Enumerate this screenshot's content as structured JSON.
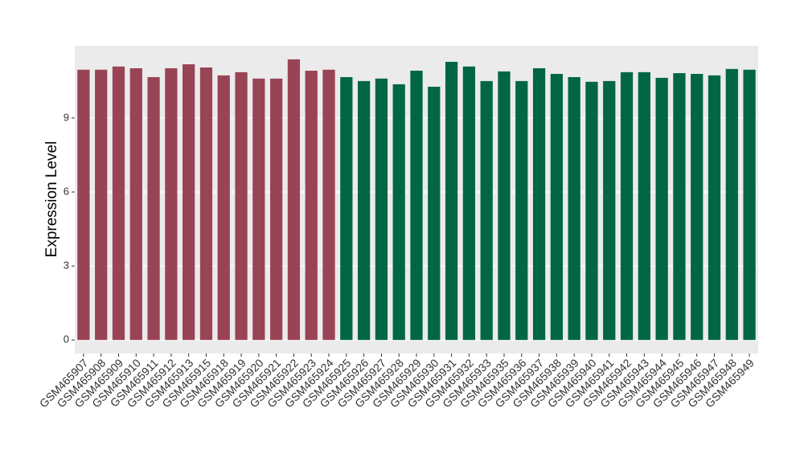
{
  "chart_data": {
    "type": "bar",
    "y_label": "Expression Level",
    "categories": [
      "GSM465907",
      "GSM465908",
      "GSM465909",
      "GSM465910",
      "GSM465911",
      "GSM465912",
      "GSM465913",
      "GSM465915",
      "GSM465918",
      "GSM465919",
      "GSM465920",
      "GSM465921",
      "GSM465922",
      "GSM465923",
      "GSM465924",
      "GSM465925",
      "GSM465926",
      "GSM465927",
      "GSM465928",
      "GSM465929",
      "GSM465930",
      "GSM465931",
      "GSM465932",
      "GSM465933",
      "GSM465935",
      "GSM465936",
      "GSM465937",
      "GSM465938",
      "GSM465939",
      "GSM465940",
      "GSM465941",
      "GSM465942",
      "GSM465943",
      "GSM465944",
      "GSM465945",
      "GSM465946",
      "GSM465947",
      "GSM465948",
      "GSM465949"
    ],
    "values": [
      10.96,
      10.96,
      11.09,
      11.02,
      10.66,
      11.02,
      11.18,
      11.05,
      10.73,
      10.86,
      10.6,
      10.6,
      11.38,
      10.92,
      10.96,
      10.66,
      10.5,
      10.6,
      10.37,
      10.92,
      10.27,
      11.28,
      11.09,
      10.5,
      10.89,
      10.5,
      11.02,
      10.79,
      10.66,
      10.47,
      10.5,
      10.86,
      10.86,
      10.63,
      10.82,
      10.79,
      10.73,
      10.99,
      10.96
    ],
    "colors": [
      "#994455",
      "#994455",
      "#994455",
      "#994455",
      "#994455",
      "#994455",
      "#994455",
      "#994455",
      "#994455",
      "#994455",
      "#994455",
      "#994455",
      "#994455",
      "#994455",
      "#994455",
      "#006644",
      "#006644",
      "#006644",
      "#006644",
      "#006644",
      "#006644",
      "#006644",
      "#006644",
      "#006644",
      "#006644",
      "#006644",
      "#006644",
      "#006644",
      "#006644",
      "#006644",
      "#006644",
      "#006644",
      "#006644",
      "#006644",
      "#006644",
      "#006644",
      "#006644",
      "#006644",
      "#006644"
    ],
    "ylim": [
      -0.55,
      11.93
    ],
    "yticks": [
      0,
      3,
      6,
      9
    ],
    "grid": true
  }
}
